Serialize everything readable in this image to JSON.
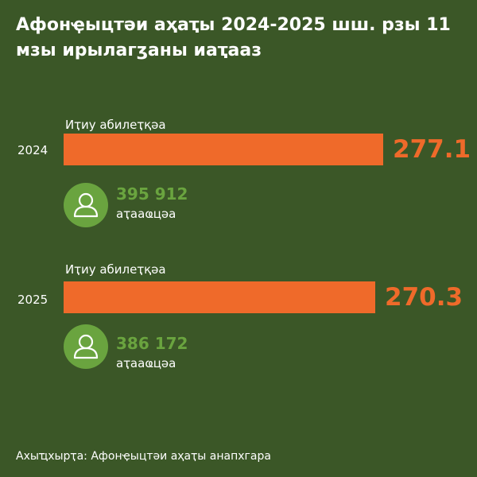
{
  "title": "Афонҿыцтәи аҳаҭы 2024-2025 шш. рзы 11 мзы ирылагӡаны иаҭааз",
  "source": "Ахыҵхырҭа: Афонҿыцтәи аҳаҭы анапхгара",
  "colors": {
    "background": "#3b5727",
    "bar": "#ef6a2a",
    "people": "#6aa43f"
  },
  "icon": "person-icon",
  "chart_data": {
    "type": "bar",
    "orientation": "horizontal",
    "title": "Афонҿыцтәи аҳаҭы 2024-2025 шш. рзы 11 мзы ирылагӡаны иаҭааз",
    "categories": [
      "2024",
      "2025"
    ],
    "series": [
      {
        "name": "Иҭиу абилеҭқәа",
        "values": [
          277.1,
          270.3
        ]
      }
    ],
    "visitors": [
      {
        "year": "2024",
        "value": "395 912",
        "label": "аҭааҩцәа"
      },
      {
        "year": "2025",
        "value": "386 172",
        "label": "аҭааҩцәа"
      }
    ],
    "bar_label": "Иҭиу абилеҭқәа",
    "value_labels": [
      "277.1",
      "270.3"
    ],
    "xlim": [
      0,
      277.1
    ]
  }
}
